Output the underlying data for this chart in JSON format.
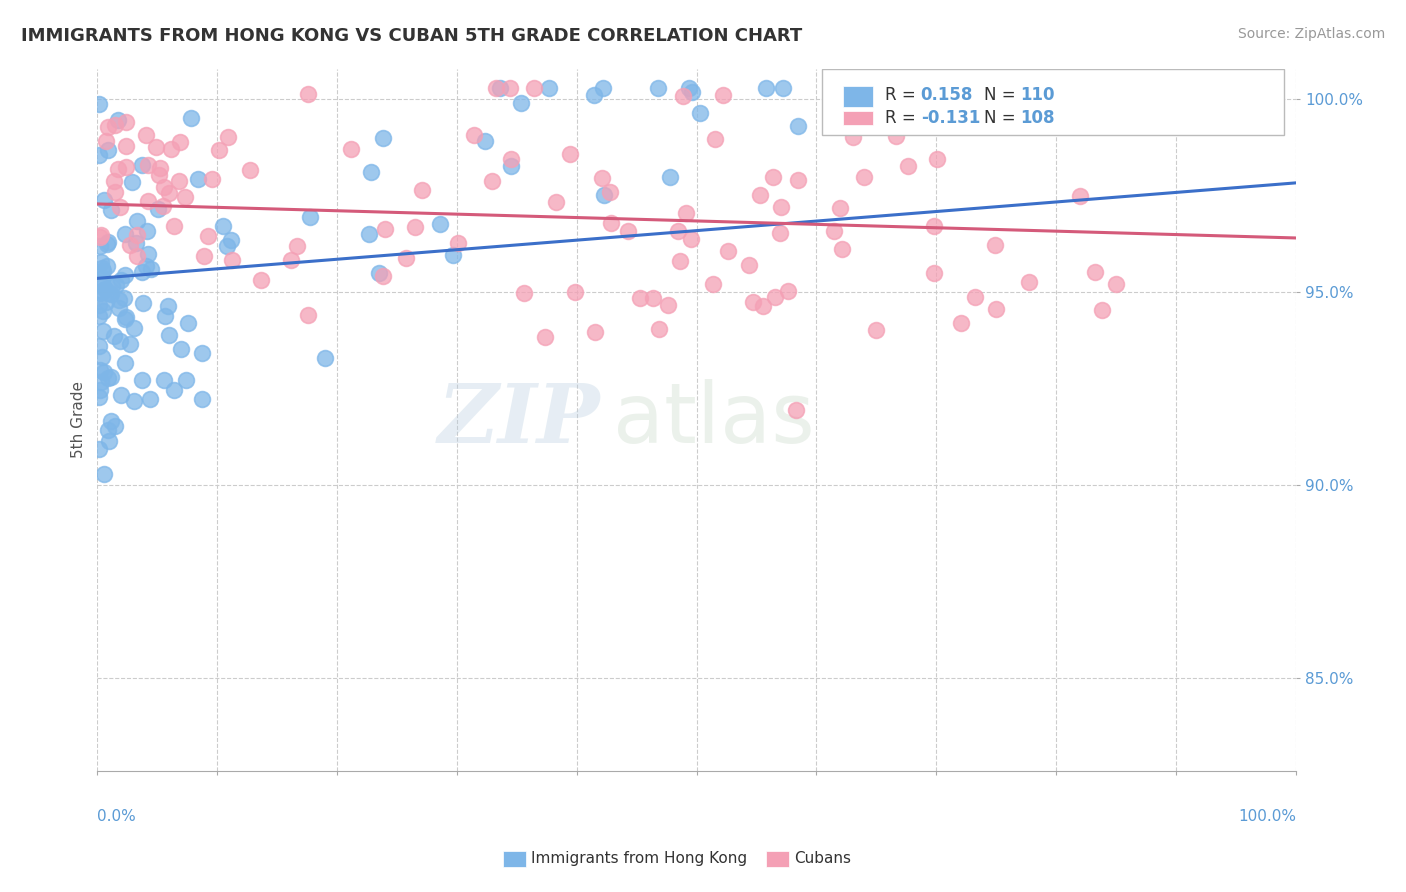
{
  "title": "IMMIGRANTS FROM HONG KONG VS CUBAN 5TH GRADE CORRELATION CHART",
  "source_text": "Source: ZipAtlas.com",
  "ylabel": "5th Grade",
  "y_tick_labels": [
    "85.0%",
    "90.0%",
    "95.0%",
    "100.0%"
  ],
  "y_tick_values": [
    0.85,
    0.9,
    0.95,
    1.0
  ],
  "ylim": [
    0.826,
    1.008
  ],
  "xlim": [
    0.0,
    1.0
  ],
  "blue_R": 0.158,
  "blue_N": 110,
  "pink_R": -0.131,
  "pink_N": 108,
  "blue_color": "#7EB6E8",
  "pink_color": "#F4A0B5",
  "blue_line_color": "#3B6FC9",
  "pink_line_color": "#D45A7A",
  "watermark_zip": "ZIP",
  "watermark_atlas": "atlas",
  "legend_label_blue": "Immigrants from Hong Kong",
  "legend_label_pink": "Cubans",
  "title_color": "#333333",
  "source_color": "#999999",
  "tick_color": "#5B9BD5",
  "ylabel_color": "#555555",
  "grid_color": "#CCCCCC",
  "legend_R_color": "#333333",
  "legend_N_color": "#5B9BD5",
  "legend_val_color": "#5B9BD5"
}
